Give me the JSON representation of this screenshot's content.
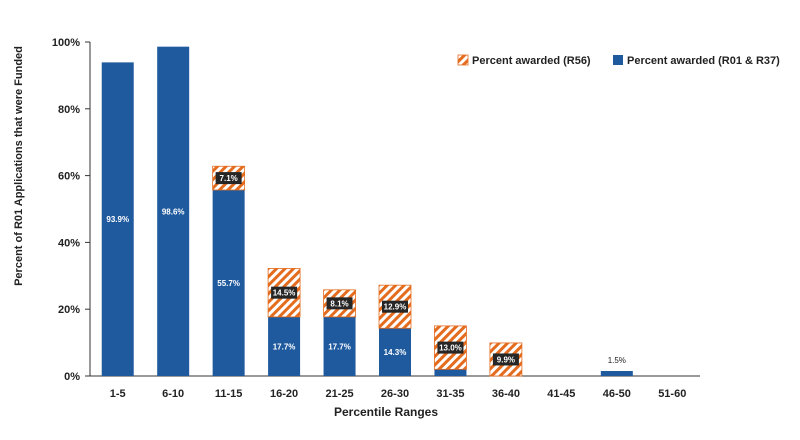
{
  "chart_data": {
    "type": "bar",
    "stacked": true,
    "xlabel": "Percentile Ranges",
    "ylabel": "Percent of R01 Applications that were Funded",
    "ylim": [
      0,
      100
    ],
    "yticks": [
      0,
      20,
      40,
      60,
      80,
      100
    ],
    "ytick_labels": [
      "0%",
      "20%",
      "40%",
      "60%",
      "80%",
      "100%"
    ],
    "grid": false,
    "legend_position": "top-right",
    "categories": [
      "1-5",
      "6-10",
      "11-15",
      "16-20",
      "21-25",
      "26-30",
      "31-35",
      "36-40",
      "41-45",
      "46-50",
      "51-60"
    ],
    "series": [
      {
        "name": "Percent awarded (R01 & R37)",
        "values": [
          93.9,
          98.6,
          55.7,
          17.7,
          17.7,
          14.3,
          2.0,
          0,
          0,
          1.5,
          0
        ],
        "labels": [
          "93.9%",
          "98.6%",
          "55.7%",
          "17.7%",
          "17.7%",
          "14.3%",
          "",
          "",
          "",
          "1.5%",
          ""
        ],
        "color": "#1f5a9e"
      },
      {
        "name": "Percent awarded (R56)",
        "values": [
          0,
          0,
          7.1,
          14.5,
          8.1,
          12.9,
          13.0,
          9.9,
          0,
          0,
          0
        ],
        "labels": [
          "",
          "",
          "7.1%",
          "14.5%",
          "8.1%",
          "12.9%",
          "13.0%",
          "9.9%",
          "",
          "",
          ""
        ],
        "color": "#e46c1e",
        "pattern": "hatch"
      }
    ]
  }
}
